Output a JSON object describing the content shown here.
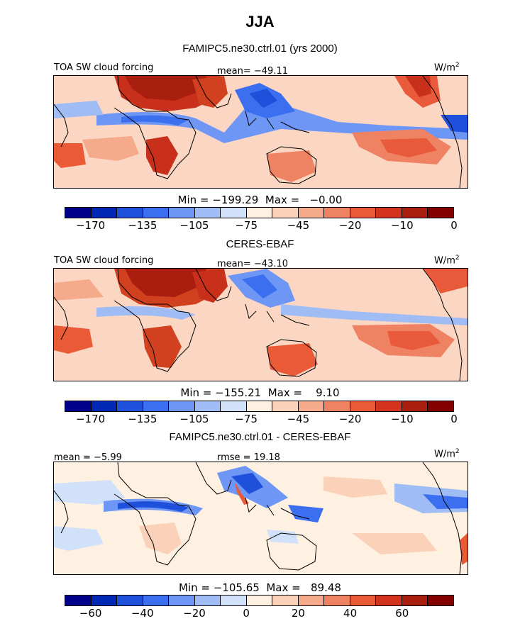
{
  "season": "JJA",
  "panels": [
    {
      "title": "FAMIPC5.ne30.ctrl.01 (yrs 2000)",
      "left_label": "TOA SW cloud forcing",
      "center_label": "mean= −49.11",
      "units": "W/m",
      "units_sup": "2",
      "stats": "Min = −199.29  Max =   −0.00",
      "ticks": [
        "−170",
        "−135",
        "−105",
        "−75",
        "−45",
        "−20",
        "−10",
        "0"
      ]
    },
    {
      "title": "CERES-EBAF",
      "left_label": "TOA SW cloud forcing",
      "center_label": "mean= −43.10",
      "units": "W/m",
      "units_sup": "2",
      "stats": "Min = −155.21  Max =    9.10",
      "ticks": [
        "−170",
        "−135",
        "−105",
        "−75",
        "−45",
        "−20",
        "−10",
        "0"
      ]
    },
    {
      "title": "FAMIPC5.ne30.ctrl.01 - CERES-EBAF",
      "left_label": "mean =  −5.99",
      "center_label": "rmse =  19.18",
      "units": "W/m",
      "units_sup": "2",
      "stats": "Min = −105.65  Max =   89.48",
      "ticks": [
        "−60",
        "−40",
        "−20",
        "0",
        "20",
        "40",
        "60"
      ]
    }
  ],
  "colorbar_colors": [
    "#00008b",
    "#0028b4",
    "#1e50dc",
    "#3c6ef0",
    "#6e96f5",
    "#a0bcf5",
    "#d2e1fa",
    "#fff1e1",
    "#fbd2b9",
    "#f5aa8c",
    "#f08264",
    "#eb5a37",
    "#d2321e",
    "#aa1e0f",
    "#820000"
  ]
}
